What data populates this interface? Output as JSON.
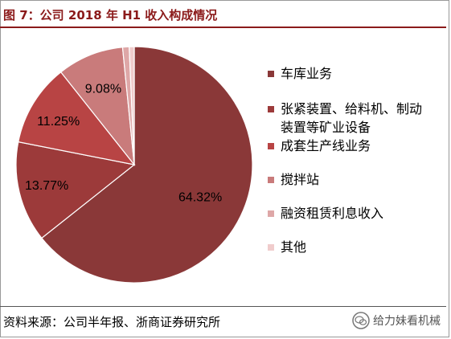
{
  "title": "图 7：公司 2018 年 H1 收入构成情况",
  "source": "资料来源：公司半年报、浙商证券研究所",
  "watermark": "给力妹看机械",
  "watermark_icon": "wechat-icon",
  "colors": {
    "title": "#8b1a1a",
    "slices": [
      "#8a3838",
      "#9c3a3a",
      "#b84444",
      "#c97b7b",
      "#dea7a7",
      "#f0cccc"
    ]
  },
  "chart_data": {
    "type": "pie",
    "title": "",
    "slices": [
      {
        "label": "车库业务",
        "value": 64.32,
        "display": "64.32%"
      },
      {
        "label": "张紧装置、给料机、制动装置等矿业设备",
        "value": 13.77,
        "display": "13.77%"
      },
      {
        "label": "成套生产线业务",
        "value": 11.25,
        "display": "11.25%"
      },
      {
        "label": "搅拌站",
        "value": 9.08,
        "display": "9.08%"
      },
      {
        "label": "融资租赁利息收入",
        "value": 0.9,
        "display": ""
      },
      {
        "label": "其他",
        "value": 0.68,
        "display": ""
      }
    ],
    "legend_position": "right"
  }
}
